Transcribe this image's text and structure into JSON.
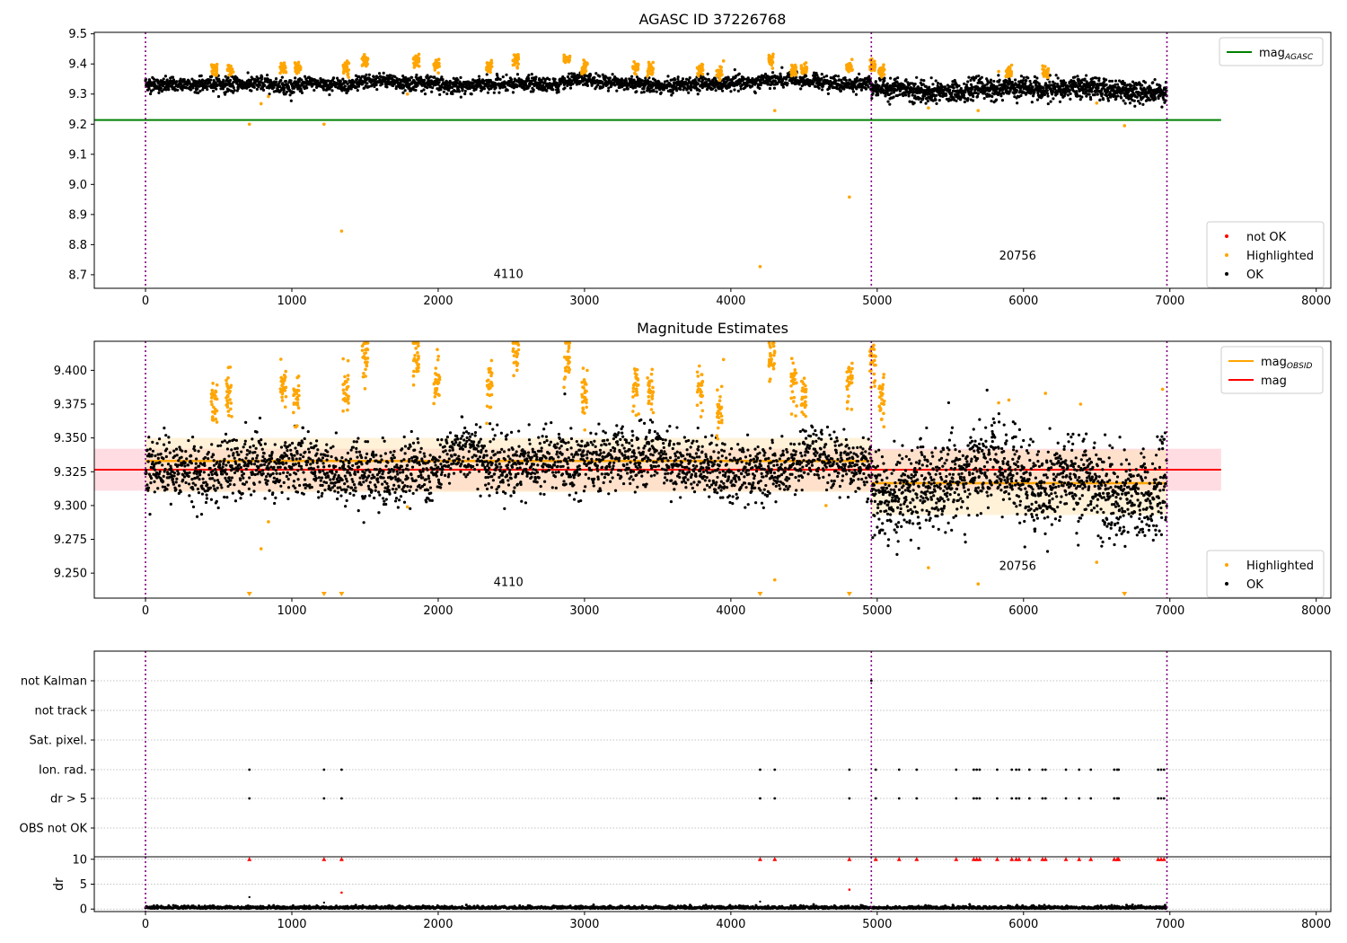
{
  "chart_data": [
    {
      "type": "scatter",
      "title": "AGASC ID 37226768",
      "xlabel": "",
      "ylabel": "",
      "xlim": [
        -350,
        8100
      ],
      "ylim": [
        8.655,
        9.505
      ],
      "xticks": [
        0,
        1000,
        2000,
        3000,
        4000,
        5000,
        6000,
        7000,
        8000
      ],
      "yticks": [
        8.7,
        8.8,
        8.9,
        9.0,
        9.1,
        9.2,
        9.3,
        9.4,
        9.5
      ],
      "ytick_labels": [
        "8.7",
        "8.8",
        "8.9",
        "9.0",
        "9.1",
        "9.2",
        "9.3",
        "9.4",
        "9.5"
      ],
      "obs_boundaries": [
        0,
        4960,
        6980
      ],
      "obs_labels": [
        {
          "text": "4110",
          "x": 2480,
          "y": 8.69
        },
        {
          "text": "20756",
          "x": 5960,
          "y": 8.75
        }
      ],
      "hlines": [
        {
          "name": "mag",
          "sub": "AGASC",
          "value": 9.214,
          "x": [
            -350,
            7350
          ],
          "color": "#008000"
        }
      ],
      "segments": [
        {
          "x": [
            0,
            4960
          ],
          "mean": 9.333,
          "noise": 0.012
        },
        {
          "x": [
            4960,
            6980
          ],
          "mean": 9.315,
          "noise": 0.017
        }
      ],
      "highlight_clusters": [
        {
          "x": 470,
          "y": 9.378
        },
        {
          "x": 580,
          "y": 9.38
        },
        {
          "x": 940,
          "y": 9.39
        },
        {
          "x": 1040,
          "y": 9.385
        },
        {
          "x": 1370,
          "y": 9.385
        },
        {
          "x": 1500,
          "y": 9.41
        },
        {
          "x": 1850,
          "y": 9.41
        },
        {
          "x": 1990,
          "y": 9.395
        },
        {
          "x": 2350,
          "y": 9.39
        },
        {
          "x": 2530,
          "y": 9.41
        },
        {
          "x": 2880,
          "y": 9.415
        },
        {
          "x": 3000,
          "y": 9.385
        },
        {
          "x": 3350,
          "y": 9.39
        },
        {
          "x": 3450,
          "y": 9.385
        },
        {
          "x": 3790,
          "y": 9.38
        },
        {
          "x": 3920,
          "y": 9.37
        },
        {
          "x": 4280,
          "y": 9.41
        },
        {
          "x": 4430,
          "y": 9.38
        },
        {
          "x": 4500,
          "y": 9.38
        },
        {
          "x": 4810,
          "y": 9.39
        },
        {
          "x": 4970,
          "y": 9.395
        },
        {
          "x": 5030,
          "y": 9.38
        },
        {
          "x": 5900,
          "y": 9.37
        },
        {
          "x": 6150,
          "y": 9.37
        }
      ],
      "highlight_outliers": [
        {
          "x": 710,
          "y": 9.2
        },
        {
          "x": 790,
          "y": 9.268
        },
        {
          "x": 840,
          "y": 9.292
        },
        {
          "x": 1220,
          "y": 9.2
        },
        {
          "x": 1340,
          "y": 8.845
        },
        {
          "x": 1790,
          "y": 9.3
        },
        {
          "x": 3950,
          "y": 9.41
        },
        {
          "x": 4200,
          "y": 8.727
        },
        {
          "x": 4300,
          "y": 9.245
        },
        {
          "x": 4810,
          "y": 8.958
        },
        {
          "x": 5350,
          "y": 9.254
        },
        {
          "x": 5690,
          "y": 9.245
        },
        {
          "x": 5830,
          "y": 9.375
        },
        {
          "x": 6500,
          "y": 9.27
        },
        {
          "x": 6690,
          "y": 9.195
        }
      ],
      "legends": [
        {
          "position": "top-right",
          "entries": [
            {
              "label": "mag",
              "sub": "AGASC",
              "color": "#008000",
              "kind": "line"
            }
          ]
        },
        {
          "position": "bottom-right",
          "entries": [
            {
              "label": "not OK",
              "color": "#ff0000",
              "kind": "dot"
            },
            {
              "label": "Highlighted",
              "color": "#ffa500",
              "kind": "dot"
            },
            {
              "label": "OK",
              "color": "#000000",
              "kind": "dot"
            }
          ]
        }
      ],
      "colors": {
        "ok": "#000000",
        "highlighted": "#ffa500",
        "not_ok": "#ff0000",
        "boundary": "#800080"
      }
    },
    {
      "type": "scatter",
      "title": "Magnitude Estimates",
      "xlabel": "",
      "ylabel": "",
      "xlim": [
        -350,
        8100
      ],
      "ylim": [
        9.2315,
        9.4215
      ],
      "xticks": [
        0,
        1000,
        2000,
        3000,
        4000,
        5000,
        6000,
        7000,
        8000
      ],
      "yticks": [
        9.25,
        9.275,
        9.3,
        9.325,
        9.35,
        9.375,
        9.4
      ],
      "ytick_labels": [
        "9.250",
        "9.275",
        "9.300",
        "9.325",
        "9.350",
        "9.375",
        "9.400"
      ],
      "obs_boundaries": [
        0,
        4960,
        6980
      ],
      "obs_labels": [
        {
          "text": "4110",
          "x": 2480,
          "y": 9.2405
        },
        {
          "text": "20756",
          "x": 5960,
          "y": 9.2525
        }
      ],
      "mag": {
        "name": "mag",
        "value": 9.3265,
        "band": [
          9.311,
          9.342
        ],
        "x": [
          -350,
          7350
        ],
        "color": "#ff0000"
      },
      "mag_obsid": [
        {
          "name": "mag",
          "sub": "OBSID",
          "x": [
            0,
            4960
          ],
          "value": 9.333,
          "band": [
            9.31,
            9.35
          ],
          "color": "#ffa500"
        },
        {
          "name": "mag",
          "sub": "OBSID",
          "x": [
            4960,
            6980
          ],
          "value": 9.3165,
          "band": [
            9.293,
            9.341
          ],
          "color": "#ffa500"
        }
      ],
      "segments": [
        {
          "x": [
            0,
            4960
          ],
          "mean": 9.329,
          "noise": 0.011
        },
        {
          "x": [
            4960,
            6980
          ],
          "mean": 9.312,
          "noise": 0.016
        }
      ],
      "highlight_clusters": [
        {
          "x": 470,
          "y": 9.372
        },
        {
          "x": 570,
          "y": 9.382
        },
        {
          "x": 940,
          "y": 9.388
        },
        {
          "x": 1030,
          "y": 9.38
        },
        {
          "x": 1370,
          "y": 9.384
        },
        {
          "x": 1500,
          "y": 9.412
        },
        {
          "x": 1850,
          "y": 9.41
        },
        {
          "x": 1990,
          "y": 9.39
        },
        {
          "x": 2350,
          "y": 9.388
        },
        {
          "x": 2530,
          "y": 9.41
        },
        {
          "x": 2880,
          "y": 9.41
        },
        {
          "x": 3000,
          "y": 9.38
        },
        {
          "x": 3350,
          "y": 9.39
        },
        {
          "x": 3450,
          "y": 9.385
        },
        {
          "x": 3790,
          "y": 9.385
        },
        {
          "x": 3920,
          "y": 9.368
        },
        {
          "x": 4280,
          "y": 9.41
        },
        {
          "x": 4430,
          "y": 9.388
        },
        {
          "x": 4500,
          "y": 9.38
        },
        {
          "x": 4810,
          "y": 9.39
        },
        {
          "x": 4970,
          "y": 9.405
        },
        {
          "x": 5030,
          "y": 9.38
        }
      ],
      "highlight_outliers": [
        {
          "x": 840,
          "y": 9.288
        },
        {
          "x": 790,
          "y": 9.268
        },
        {
          "x": 1790,
          "y": 9.299
        },
        {
          "x": 3950,
          "y": 9.408
        },
        {
          "x": 4300,
          "y": 9.245
        },
        {
          "x": 4650,
          "y": 9.3
        },
        {
          "x": 5350,
          "y": 9.254
        },
        {
          "x": 5690,
          "y": 9.242
        },
        {
          "x": 5830,
          "y": 9.376
        },
        {
          "x": 5900,
          "y": 9.378
        },
        {
          "x": 6150,
          "y": 9.383
        },
        {
          "x": 6390,
          "y": 9.375
        },
        {
          "x": 6500,
          "y": 9.258
        },
        {
          "x": 6950,
          "y": 9.386
        }
      ],
      "offscale_low": [
        710,
        1220,
        1340,
        4200,
        4810,
        6690
      ],
      "legends": [
        {
          "position": "top-right",
          "entries": [
            {
              "label": "mag",
              "sub": "OBSID",
              "color": "#ffa500",
              "kind": "line"
            },
            {
              "label": "mag",
              "sub": "",
              "color": "#ff0000",
              "kind": "line"
            }
          ]
        },
        {
          "position": "bottom-right",
          "entries": [
            {
              "label": "Highlighted",
              "color": "#ffa500",
              "kind": "dot"
            },
            {
              "label": "OK",
              "color": "#000000",
              "kind": "dot"
            }
          ]
        }
      ]
    },
    {
      "type": "scatter",
      "title": "",
      "xlabel": "",
      "ylabel": "",
      "xlim": [
        -350,
        8100
      ],
      "obs_boundaries": [
        0,
        4960,
        6980
      ],
      "flag_rows": [
        "not Kalman",
        "not track",
        "Sat. pixel.",
        "Ion. rad.",
        "dr > 5",
        "OBS not OK"
      ],
      "flag_points": {
        "not Kalman": [
          4960
        ],
        "not track": [],
        "Sat. pixel.": [],
        "Ion. rad.": [
          710,
          1220,
          1340,
          4200,
          4300,
          4810,
          4990,
          5150,
          5270,
          5540,
          5660,
          5680,
          5700,
          5820,
          5920,
          5950,
          5970,
          6040,
          6130,
          6150,
          6290,
          6380,
          6460,
          6620,
          6640,
          6650,
          6920,
          6940,
          6960
        ],
        "dr > 5": [
          710,
          1220,
          1340,
          4200,
          4300,
          4810,
          4990,
          5150,
          5270,
          5540,
          5660,
          5680,
          5700,
          5820,
          5920,
          5950,
          5970,
          6040,
          6130,
          6150,
          6290,
          6380,
          6460,
          6620,
          6640,
          6650,
          6920,
          6940,
          6960
        ],
        "OBS not OK": []
      }
    },
    {
      "type": "scatter",
      "title": "",
      "xlabel": "",
      "ylabel": "dr",
      "xlim": [
        -350,
        8100
      ],
      "ylim": [
        -0.5,
        10.5
      ],
      "yticks": [
        0,
        5,
        10
      ],
      "ytick_labels": [
        "0",
        "5",
        "10"
      ],
      "xticks": [
        0,
        1000,
        2000,
        3000,
        4000,
        5000,
        6000,
        7000,
        8000
      ],
      "obs_boundaries": [
        0,
        4960,
        6980
      ],
      "clipped_at": 10,
      "clipped_x": [
        710,
        1220,
        1340,
        4200,
        4300,
        4810,
        4990,
        5150,
        5270,
        5540,
        5660,
        5680,
        5700,
        5820,
        5920,
        5950,
        5970,
        6040,
        6130,
        6150,
        6290,
        6380,
        6460,
        6620,
        6640,
        6650,
        6920,
        6940,
        6960
      ],
      "scattered_red": [
        {
          "x": 1340,
          "y": 3.3
        },
        {
          "x": 4810,
          "y": 3.9
        }
      ],
      "scattered_black": [
        {
          "x": 710,
          "y": 2.4
        },
        {
          "x": 1220,
          "y": 1.3
        },
        {
          "x": 4200,
          "y": 1.5
        }
      ]
    }
  ]
}
